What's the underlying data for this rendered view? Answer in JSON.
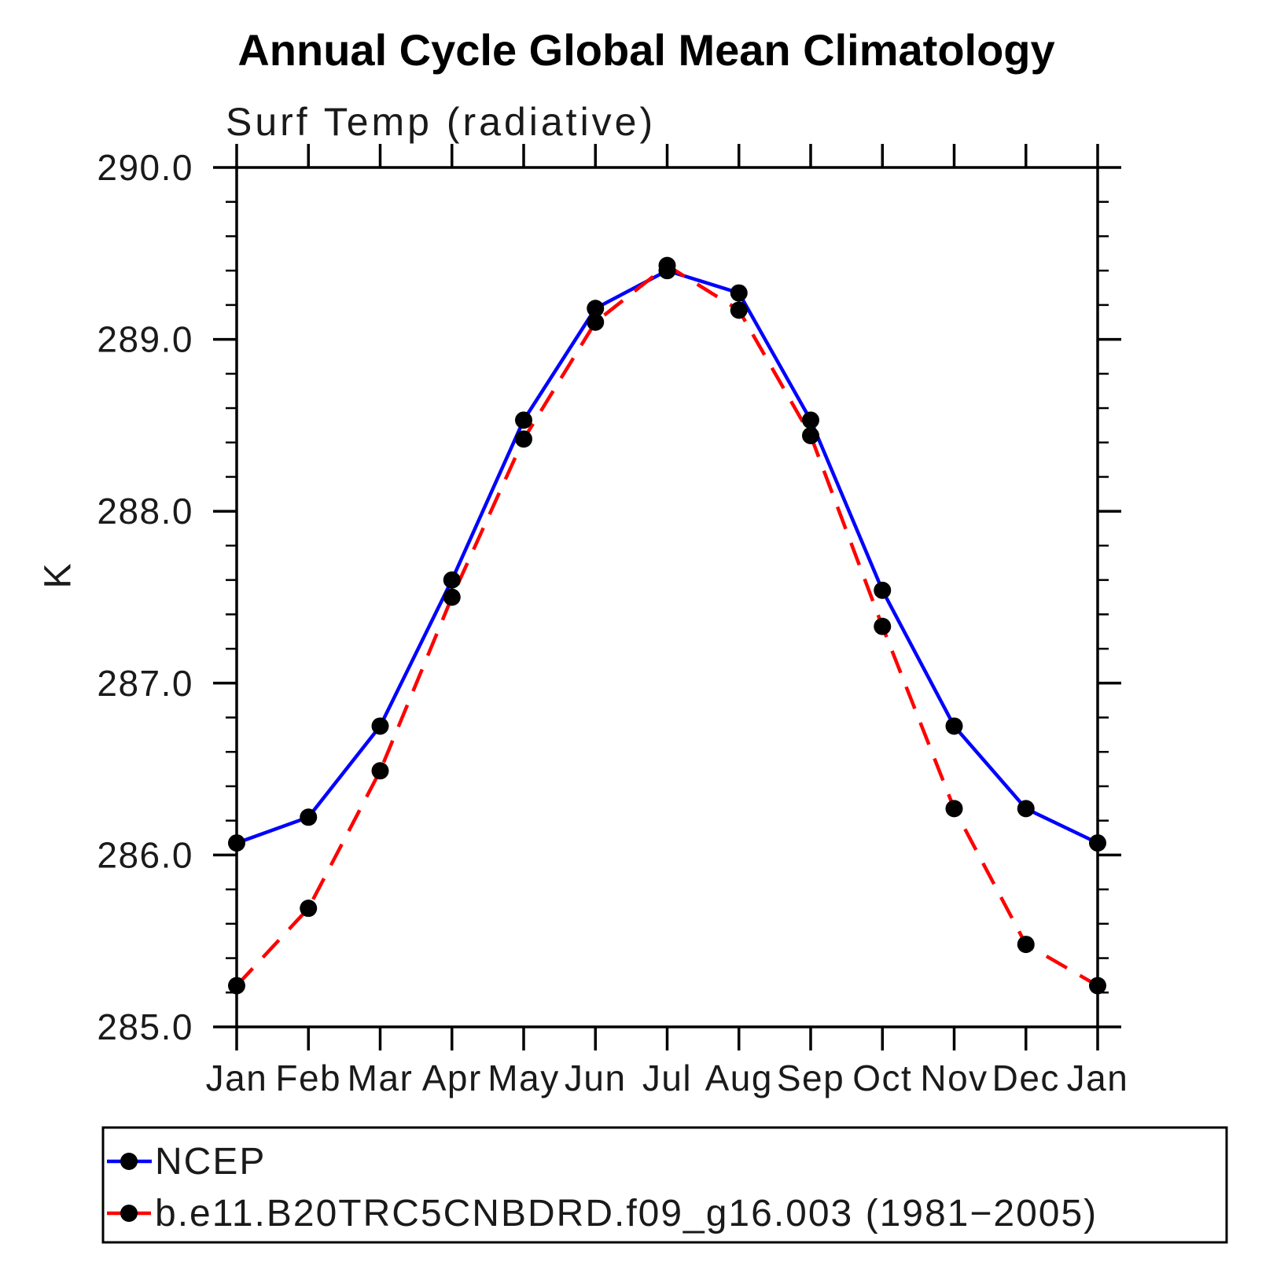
{
  "chart_data": {
    "type": "line",
    "title": "Annual Cycle Global Mean Climatology",
    "subtitle": "Surf Temp (radiative)",
    "ylabel": "K",
    "categories": [
      "Jan",
      "Feb",
      "Mar",
      "Apr",
      "May",
      "Jun",
      "Jul",
      "Aug",
      "Sep",
      "Oct",
      "Nov",
      "Dec",
      "Jan"
    ],
    "ylim": [
      285.0,
      290.0
    ],
    "ytick_major_interval": 1.0,
    "ytick_minor_interval": 0.2,
    "ytick_labels": [
      "290.0",
      "289.0",
      "288.0",
      "287.0",
      "286.0",
      "285.0"
    ],
    "grid": "off",
    "legend_position": "bottom",
    "series": [
      {
        "name": "NCEP",
        "color": "#0000ff",
        "line_style": "solid",
        "marker": "black-dot",
        "values": [
          286.07,
          286.22,
          286.75,
          287.6,
          288.53,
          289.18,
          289.4,
          289.27,
          288.53,
          287.54,
          286.75,
          286.27,
          286.07
        ]
      },
      {
        "name": "b.e11.B20TRC5CNBDRD.f09_g16.003 (1981−2005)",
        "color": "#ff0000",
        "line_style": "dashed",
        "marker": "black-dot",
        "values": [
          285.24,
          285.69,
          286.49,
          287.5,
          288.42,
          289.1,
          289.43,
          289.17,
          288.44,
          287.33,
          286.27,
          285.48,
          285.24
        ]
      }
    ],
    "axis_color": "#000000",
    "marker_color": "#000000"
  }
}
